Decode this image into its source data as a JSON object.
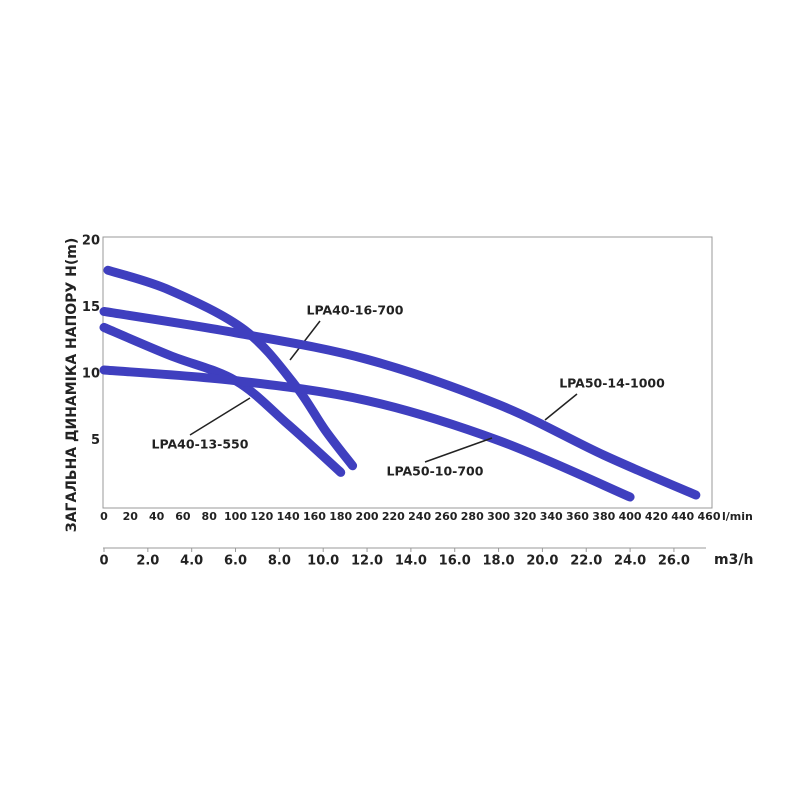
{
  "chart_data": {
    "type": "line",
    "ylabel": "ЗАГАЛЬНА ДИНАМІКА НАПОРУ H(m)",
    "xlabel": "l/min",
    "x2label": "m3/h",
    "xlim": [
      0,
      460
    ],
    "ylim": [
      0,
      20
    ],
    "x2lim": [
      0,
      27.6
    ],
    "xticks": [
      0,
      20,
      40,
      60,
      80,
      100,
      120,
      140,
      160,
      180,
      200,
      220,
      240,
      260,
      280,
      300,
      320,
      340,
      360,
      380,
      400,
      420,
      440,
      460
    ],
    "yticks": [
      5,
      10,
      15,
      20
    ],
    "x2ticks": [
      0,
      {
        "value": 2,
        "label": "2.0"
      },
      {
        "value": 4,
        "label": "4.0"
      },
      {
        "value": 6,
        "label": "6.0"
      },
      {
        "value": 8,
        "label": "8.0"
      },
      {
        "value": 10,
        "label": "10.0"
      },
      {
        "value": 12,
        "label": "12.0"
      },
      {
        "value": 14,
        "label": "14.0"
      },
      {
        "value": 16,
        "label": "16.0"
      },
      {
        "value": 18,
        "label": "18.0"
      },
      {
        "value": 20,
        "label": "20.0"
      },
      {
        "value": 22,
        "label": "22.0"
      },
      {
        "value": 24,
        "label": "24.0"
      },
      {
        "value": 26,
        "label": "26.0"
      }
    ],
    "series": [
      {
        "name": "LPA40-16-700",
        "color": "#3f3fbf",
        "x": [
          3,
          50,
          107,
          145,
          168,
          189
        ],
        "values": [
          17.8,
          16.3,
          13.3,
          9.2,
          5.8,
          3.1
        ]
      },
      {
        "name": "LPA40-13-550",
        "color": "#3f3fbf",
        "x": [
          0,
          50,
          100,
          140,
          180
        ],
        "values": [
          13.5,
          11.4,
          9.5,
          6.2,
          2.6
        ]
      },
      {
        "name": "LPA50-14-1000",
        "color": "#3f3fbf",
        "x": [
          0,
          100,
          200,
          300,
          380,
          450
        ],
        "values": [
          14.7,
          13.1,
          11.1,
          7.7,
          3.9,
          0.9
        ]
      },
      {
        "name": "LPA50-10-700",
        "color": "#3f3fbf",
        "x": [
          0,
          100,
          200,
          300,
          400
        ],
        "values": [
          10.3,
          9.5,
          8.0,
          5.0,
          0.75
        ]
      }
    ]
  }
}
